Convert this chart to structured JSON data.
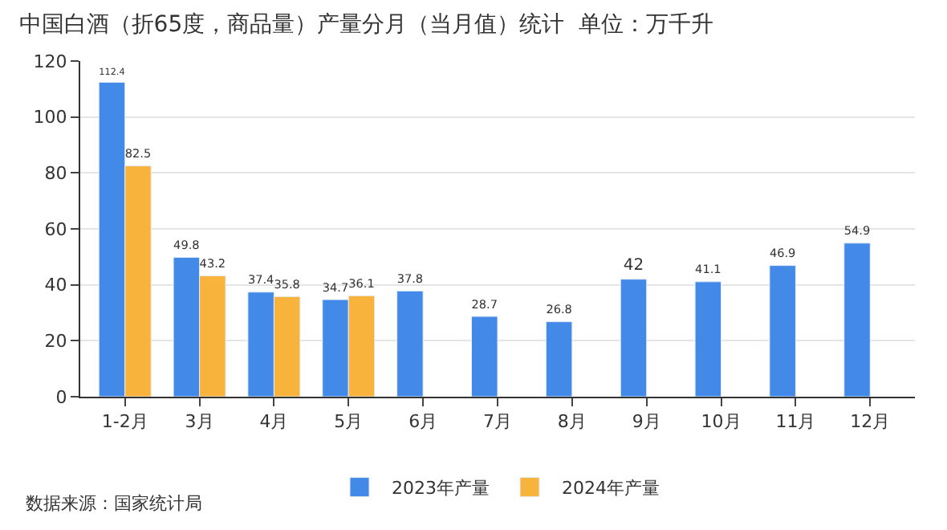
{
  "chart_data": {
    "type": "bar",
    "title": "中国白酒（折65度，商品量）产量分月（当月值）统计  单位：万千升",
    "categories": [
      "1-2月",
      "3月",
      "4月",
      "5月",
      "6月",
      "7月",
      "8月",
      "9月",
      "10月",
      "11月",
      "12月"
    ],
    "series": [
      {
        "name": "2023年产量",
        "color": "#4289e8",
        "values": [
          112.4,
          49.8,
          37.4,
          34.7,
          37.8,
          28.7,
          26.8,
          42,
          41.1,
          46.9,
          54.9
        ]
      },
      {
        "name": "2024年产量",
        "color": "#f8b33c",
        "values": [
          82.5,
          43.2,
          35.8,
          36.1,
          null,
          null,
          null,
          null,
          null,
          null,
          null
        ]
      }
    ],
    "ylim": [
      0,
      120
    ],
    "yticks": [
      0,
      20,
      40,
      60,
      80,
      100,
      120
    ],
    "grid": "y",
    "legend": "bottom",
    "data_labels": true,
    "annotations": [
      "数据来源：国家统计局"
    ]
  }
}
